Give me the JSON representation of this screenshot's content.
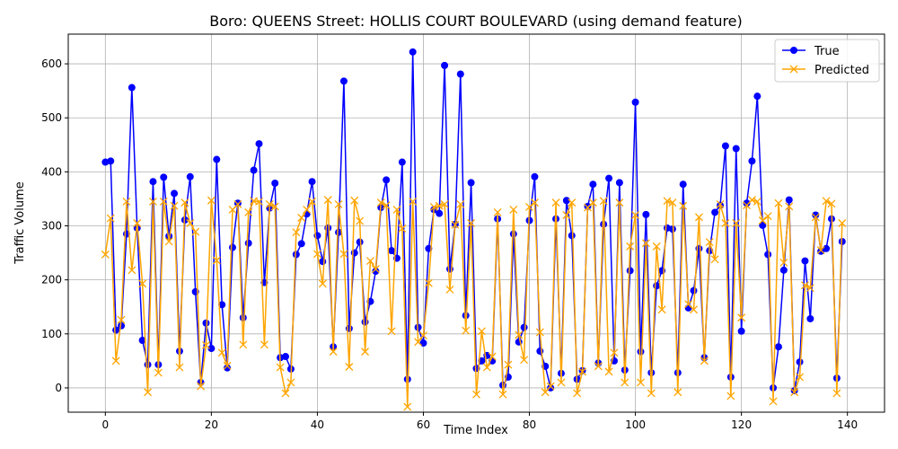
{
  "chart_data": {
    "type": "line",
    "title": "Boro: QUEENS Street: HOLLIS COURT BOULEVARD (using demand feature)",
    "xlabel": "Time Index",
    "ylabel": "Traffic Volume",
    "xlim": [
      -7,
      147
    ],
    "ylim": [
      -45,
      655
    ],
    "xticks": [
      0,
      20,
      40,
      60,
      80,
      100,
      120,
      140
    ],
    "yticks": [
      0,
      100,
      200,
      300,
      400,
      500,
      600
    ],
    "grid": true,
    "legend_position": "top-right",
    "series": [
      {
        "name": "True",
        "color": "#0000ff",
        "marker": "o",
        "values": [
          418,
          420,
          107,
          115,
          285,
          556,
          296,
          88,
          43,
          382,
          43,
          390,
          281,
          360,
          68,
          311,
          391,
          178,
          10,
          120,
          73,
          423,
          154,
          37,
          260,
          342,
          130,
          268,
          403,
          452,
          195,
          333,
          379,
          56,
          58,
          35,
          247,
          267,
          322,
          382,
          282,
          234,
          296,
          76,
          288,
          568,
          110,
          250,
          270,
          122,
          160,
          216,
          334,
          385,
          254,
          240,
          418,
          16,
          622,
          112,
          83,
          258,
          330,
          323,
          597,
          220,
          303,
          581,
          134,
          380,
          36,
          50,
          60,
          50,
          313,
          5,
          20,
          285,
          85,
          112,
          310,
          391,
          68,
          40,
          0,
          313,
          27,
          347,
          282,
          16,
          32,
          336,
          377,
          46,
          303,
          388,
          50,
          380,
          33,
          217,
          529,
          67,
          321,
          28,
          189,
          217,
          296,
          294,
          28,
          377,
          148,
          180,
          258,
          56,
          254,
          325,
          338,
          448,
          20,
          443,
          105,
          342,
          420,
          540,
          301,
          247,
          0,
          76,
          218,
          348,
          -5,
          48,
          235,
          128,
          320,
          253,
          258,
          313,
          18,
          271
        ]
      },
      {
        "name": "Predicted",
        "color": "#ffa500",
        "marker": "x",
        "values": [
          247,
          314,
          50,
          126,
          345,
          218,
          305,
          193,
          -8,
          345,
          28,
          345,
          271,
          337,
          38,
          343,
          305,
          289,
          3,
          79,
          347,
          236,
          65,
          41,
          330,
          340,
          80,
          325,
          346,
          345,
          80,
          340,
          336,
          38,
          -10,
          10,
          288,
          315,
          330,
          345,
          248,
          193,
          348,
          67,
          340,
          248,
          39,
          347,
          309,
          67,
          235,
          220,
          343,
          338,
          105,
          330,
          295,
          -35,
          345,
          85,
          97,
          194,
          335,
          337,
          340,
          182,
          302,
          340,
          106,
          305,
          -12,
          105,
          38,
          58,
          325,
          -12,
          43,
          330,
          98,
          52,
          335,
          343,
          103,
          -8,
          3,
          343,
          10,
          320,
          343,
          -10,
          30,
          334,
          343,
          40,
          346,
          30,
          65,
          343,
          10,
          262,
          320,
          10,
          268,
          -10,
          262,
          145,
          346,
          343,
          -8,
          337,
          155,
          145,
          316,
          50,
          270,
          238,
          340,
          305,
          -15,
          305,
          130,
          338,
          348,
          345,
          310,
          318,
          -25,
          342,
          232,
          336,
          -8,
          20,
          190,
          185,
          316,
          255,
          346,
          341,
          -10,
          305
        ]
      }
    ]
  }
}
